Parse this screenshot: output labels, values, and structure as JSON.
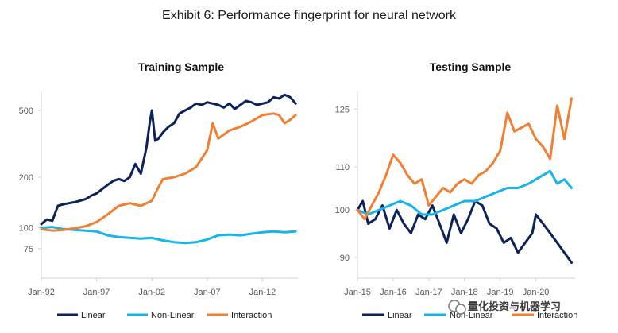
{
  "title": "Exhibit 6: Performance fingerprint for neural network",
  "colors": {
    "Linear": "#0d2258",
    "Non-Linear": "#16b4ea",
    "Interaction": "#f07f33",
    "axis": "#d0d0d0"
  },
  "legend": [
    "Linear",
    "Non-Linear",
    "Interaction"
  ],
  "watermark": "量化投资与机器学习",
  "chart_data": [
    {
      "type": "line",
      "title": "Training Sample",
      "yscale": "log",
      "ylim": [
        50,
        650
      ],
      "xlim": [
        1992.0,
        2015.2
      ],
      "yticks": [
        75,
        100,
        200,
        500
      ],
      "xticks": [
        1992,
        1997,
        2002,
        2007,
        2012
      ],
      "xtick_labels": [
        "Jan-92",
        "Jan-97",
        "Jan-02",
        "Jan-07",
        "Jan-12"
      ],
      "series": [
        {
          "name": "Linear",
          "x": [
            1992.0,
            1992.5,
            1993.0,
            1993.5,
            1994.0,
            1994.5,
            1995.0,
            1995.5,
            1996.0,
            1996.5,
            1997.0,
            1997.5,
            1998.0,
            1998.5,
            1999.0,
            1999.5,
            2000.0,
            2000.5,
            2001.0,
            2001.5,
            2001.8,
            2002.0,
            2002.3,
            2002.6,
            2003.0,
            2003.5,
            2004.0,
            2004.5,
            2005.0,
            2005.5,
            2006.0,
            2006.5,
            2007.0,
            2007.5,
            2008.0,
            2008.5,
            2009.0,
            2009.5,
            2010.0,
            2010.5,
            2011.0,
            2011.5,
            2012.0,
            2012.5,
            2013.0,
            2013.5,
            2014.0,
            2014.5,
            2015.0
          ],
          "y": [
            105,
            112,
            110,
            135,
            138,
            140,
            142,
            145,
            148,
            155,
            160,
            170,
            180,
            190,
            195,
            190,
            200,
            240,
            210,
            300,
            420,
            500,
            330,
            340,
            370,
            400,
            420,
            480,
            500,
            520,
            550,
            540,
            560,
            550,
            540,
            520,
            550,
            510,
            540,
            570,
            560,
            540,
            550,
            560,
            600,
            590,
            620,
            600,
            550
          ]
        },
        {
          "name": "Non-Linear",
          "x": [
            1992.0,
            1993.0,
            1994.0,
            1995.0,
            1996.0,
            1997.0,
            1998.0,
            1999.0,
            2000.0,
            2001.0,
            2002.0,
            2003.0,
            2004.0,
            2005.0,
            2006.0,
            2007.0,
            2008.0,
            2009.0,
            2010.0,
            2011.0,
            2012.0,
            2013.0,
            2014.0,
            2015.0
          ],
          "y": [
            100,
            101,
            98,
            97,
            96,
            95,
            90,
            88,
            87,
            86,
            87,
            84,
            82,
            81,
            82,
            85,
            90,
            91,
            90,
            92,
            94,
            95,
            94,
            95
          ]
        },
        {
          "name": "Interaction",
          "x": [
            1992.0,
            1993.0,
            1994.0,
            1995.0,
            1996.0,
            1997.0,
            1998.0,
            1999.0,
            2000.0,
            2001.0,
            2002.0,
            2002.5,
            2003.0,
            2004.0,
            2005.0,
            2006.0,
            2007.0,
            2007.5,
            2008.0,
            2009.0,
            2010.0,
            2011.0,
            2012.0,
            2013.0,
            2013.5,
            2014.0,
            2014.5,
            2015.0
          ],
          "y": [
            98,
            96,
            97,
            99,
            102,
            108,
            120,
            135,
            140,
            135,
            145,
            170,
            195,
            200,
            210,
            230,
            290,
            420,
            340,
            380,
            400,
            430,
            470,
            480,
            470,
            420,
            440,
            470
          ]
        }
      ]
    },
    {
      "type": "line",
      "title": "Testing Sample",
      "yscale": "log",
      "ylim": [
        86,
        130
      ],
      "xlim": [
        2015.0,
        2021.1
      ],
      "yticks": [
        90,
        100,
        110,
        125
      ],
      "xticks": [
        2015,
        2016,
        2017,
        2018,
        2019,
        2020
      ],
      "xtick_labels": [
        "Jan-15",
        "Jan-16",
        "Jan-17",
        "Jan-18",
        "Jan-19",
        "Jan-20"
      ],
      "series": [
        {
          "name": "Linear",
          "x": [
            2015.0,
            2015.15,
            2015.3,
            2015.5,
            2015.7,
            2015.9,
            2016.1,
            2016.3,
            2016.5,
            2016.7,
            2016.9,
            2017.1,
            2017.3,
            2017.5,
            2017.7,
            2017.9,
            2018.1,
            2018.3,
            2018.5,
            2018.7,
            2018.9,
            2019.1,
            2019.3,
            2019.5,
            2019.7,
            2019.9,
            2020.0,
            2020.2,
            2020.4,
            2020.6,
            2020.8,
            2021.0
          ],
          "y": [
            100,
            102,
            97,
            98,
            101,
            96,
            100,
            97,
            95,
            99,
            98,
            101,
            97,
            93,
            99,
            95,
            98,
            102,
            101,
            97,
            96,
            93,
            94,
            91,
            93,
            95,
            99,
            97,
            95,
            93,
            91,
            89
          ]
        },
        {
          "name": "Non-Linear",
          "x": [
            2015.0,
            2015.3,
            2015.6,
            2015.9,
            2016.2,
            2016.5,
            2016.8,
            2017.1,
            2017.4,
            2017.7,
            2018.0,
            2018.3,
            2018.6,
            2018.9,
            2019.2,
            2019.5,
            2019.8,
            2020.0,
            2020.2,
            2020.4,
            2020.6,
            2020.8,
            2021.0
          ],
          "y": [
            100,
            99,
            100,
            101,
            102,
            101,
            99,
            99,
            100,
            101,
            102,
            102,
            103,
            104,
            105,
            105,
            106,
            107,
            108,
            109,
            106,
            107,
            105
          ]
        },
        {
          "name": "Interaction",
          "x": [
            2015.0,
            2015.2,
            2015.4,
            2015.6,
            2015.8,
            2016.0,
            2016.2,
            2016.4,
            2016.6,
            2016.8,
            2017.0,
            2017.2,
            2017.4,
            2017.6,
            2017.8,
            2018.0,
            2018.2,
            2018.4,
            2018.6,
            2018.8,
            2019.0,
            2019.2,
            2019.4,
            2019.6,
            2019.8,
            2020.0,
            2020.2,
            2020.4,
            2020.6,
            2020.8,
            2021.0
          ],
          "y": [
            100,
            98,
            101,
            104,
            108,
            113,
            111,
            108,
            106,
            107,
            101,
            103,
            105,
            104,
            106,
            107,
            106,
            108,
            109,
            111,
            114,
            124,
            119,
            120,
            121,
            117,
            115,
            112,
            126,
            117,
            128
          ]
        }
      ]
    }
  ]
}
